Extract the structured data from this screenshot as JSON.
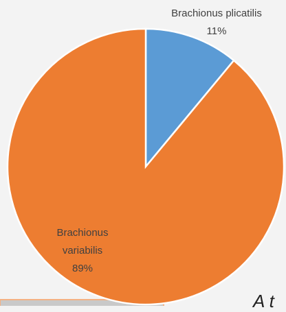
{
  "chart_data": {
    "type": "pie",
    "categories": [
      "Brachionus plicatilis",
      "Brachionus variabilis"
    ],
    "values": [
      11,
      89
    ],
    "value_labels": [
      "11%",
      "89%"
    ],
    "colors": [
      "#5b9bd5",
      "#ed7d31"
    ],
    "annotation": "A t"
  }
}
